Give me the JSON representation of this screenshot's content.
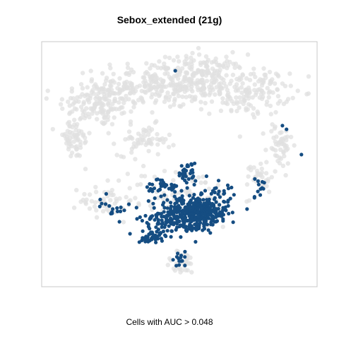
{
  "chart_data": {
    "type": "scatter",
    "title": "Sebox_extended (21g)",
    "xlabel": "Cells with AUC > 0.048",
    "ylabel": "",
    "xlim": [
      0,
      100
    ],
    "ylim": [
      0,
      100
    ],
    "grid": false,
    "legend": "none",
    "series": [
      {
        "role": "all-cells",
        "color": "#e0e0e0",
        "clusters": [
          {
            "cx": 20,
            "cy": 75,
            "sx": 9,
            "sy": 6,
            "n": 140
          },
          {
            "cx": 40,
            "cy": 83,
            "sx": 13,
            "sy": 6,
            "n": 220
          },
          {
            "cx": 58,
            "cy": 86,
            "sx": 10,
            "sy": 6,
            "n": 170
          },
          {
            "cx": 76,
            "cy": 80,
            "sx": 9,
            "sy": 6,
            "n": 150
          },
          {
            "cx": 11,
            "cy": 60,
            "sx": 4,
            "sy": 5,
            "n": 60
          },
          {
            "cx": 37,
            "cy": 60,
            "sx": 6,
            "sy": 4,
            "n": 60
          },
          {
            "cx": 87,
            "cy": 58,
            "sx": 3,
            "sy": 6,
            "n": 50
          },
          {
            "cx": 80,
            "cy": 45,
            "sx": 3,
            "sy": 4,
            "n": 35
          },
          {
            "cx": 23,
            "cy": 35,
            "sx": 6,
            "sy": 4,
            "n": 45
          },
          {
            "cx": 50,
            "cy": 36,
            "sx": 14,
            "sy": 8,
            "n": 100
          },
          {
            "cx": 51,
            "cy": 9,
            "sx": 4,
            "sy": 3,
            "n": 35
          }
        ]
      },
      {
        "role": "cells-above-threshold",
        "color": "#154d82",
        "clusters": [
          {
            "cx": 57,
            "cy": 30,
            "sx": 7,
            "sy": 4,
            "n": 360
          },
          {
            "cx": 46,
            "cy": 27,
            "sx": 6,
            "sy": 4,
            "n": 90
          },
          {
            "cx": 40,
            "cy": 20,
            "sx": 3,
            "sy": 2,
            "n": 45
          },
          {
            "cx": 45,
            "cy": 40,
            "sx": 5,
            "sy": 3,
            "n": 45
          },
          {
            "cx": 53,
            "cy": 46,
            "sx": 2,
            "sy": 3,
            "n": 30
          },
          {
            "cx": 26,
            "cy": 32,
            "sx": 4,
            "sy": 3,
            "n": 18
          },
          {
            "cx": 50,
            "cy": 11,
            "sx": 2,
            "sy": 2,
            "n": 14
          },
          {
            "cx": 79,
            "cy": 40,
            "sx": 1.5,
            "sy": 3,
            "n": 12
          },
          {
            "cx": 65,
            "cy": 39,
            "sx": 3,
            "sy": 3,
            "n": 18
          }
        ],
        "points": [
          [
            48.5,
            88.8
          ],
          [
            88,
            66
          ],
          [
            89.5,
            64.5
          ],
          [
            95,
            54
          ],
          [
            60,
            45
          ],
          [
            59.5,
            39
          ],
          [
            55.5,
            41.5
          ]
        ]
      }
    ]
  }
}
